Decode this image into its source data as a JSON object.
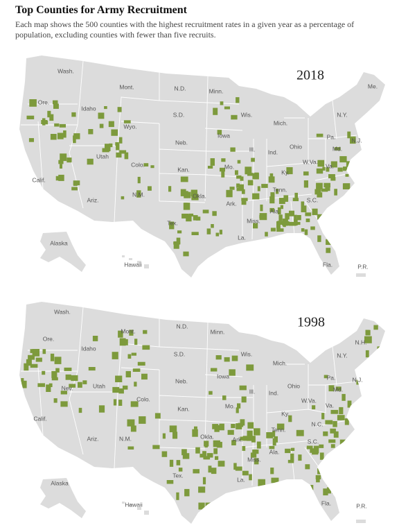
{
  "header": {
    "title": "Top Counties for Army Recruitment",
    "subtitle": "Each map shows the 500 counties with the highest recruitment rates in a given year as a percentage of population, excluding counties with fewer than five recruits."
  },
  "maps": [
    {
      "year": "2018",
      "labels": [
        "Wash.",
        "Mont.",
        "N.D.",
        "Minn.",
        "Me.",
        "Ore.",
        "Idaho",
        "S.D.",
        "Wis.",
        "N.Y.",
        "Wyo.",
        "Mich.",
        "Iowa",
        "Pa.",
        "Neb.",
        "Ohio",
        "N.J.",
        "Utah",
        "Colo.",
        "Ill.",
        "Ind.",
        "Md.",
        "W.Va.",
        "Kan.",
        "Mo.",
        "Ky.",
        "Va.",
        "Calif.",
        "Tenn.",
        "Okla.",
        "Ark.",
        "N.M.",
        "Ariz.",
        "S.C.",
        "Ala.",
        "Miss.",
        "Tex.",
        "La.",
        "Alaska",
        "Hawaii",
        "Fla.",
        "P.R."
      ]
    },
    {
      "year": "1998",
      "labels": [
        "Wash.",
        "N.D.",
        "Minn.",
        "Mont.",
        "Ore.",
        "Idaho",
        "S.D.",
        "Wis.",
        "N.Y.",
        "Mich.",
        "N.H.",
        "Nev.",
        "Utah",
        "Iowa",
        "Pa.",
        "Neb.",
        "Ohio",
        "N.J.",
        "Ill.",
        "Ind.",
        "W.Va.",
        "Md.",
        "Colo.",
        "Kan.",
        "Mo.",
        "Ky.",
        "Va.",
        "Calif.",
        "N.C.",
        "Tenn.",
        "Ariz.",
        "N.M.",
        "Okla.",
        "Ark.",
        "S.C.",
        "Ala.",
        "Miss.",
        "Tex.",
        "La.",
        "Alaska",
        "Hawaii",
        "Fla.",
        "P.R."
      ]
    }
  ]
}
